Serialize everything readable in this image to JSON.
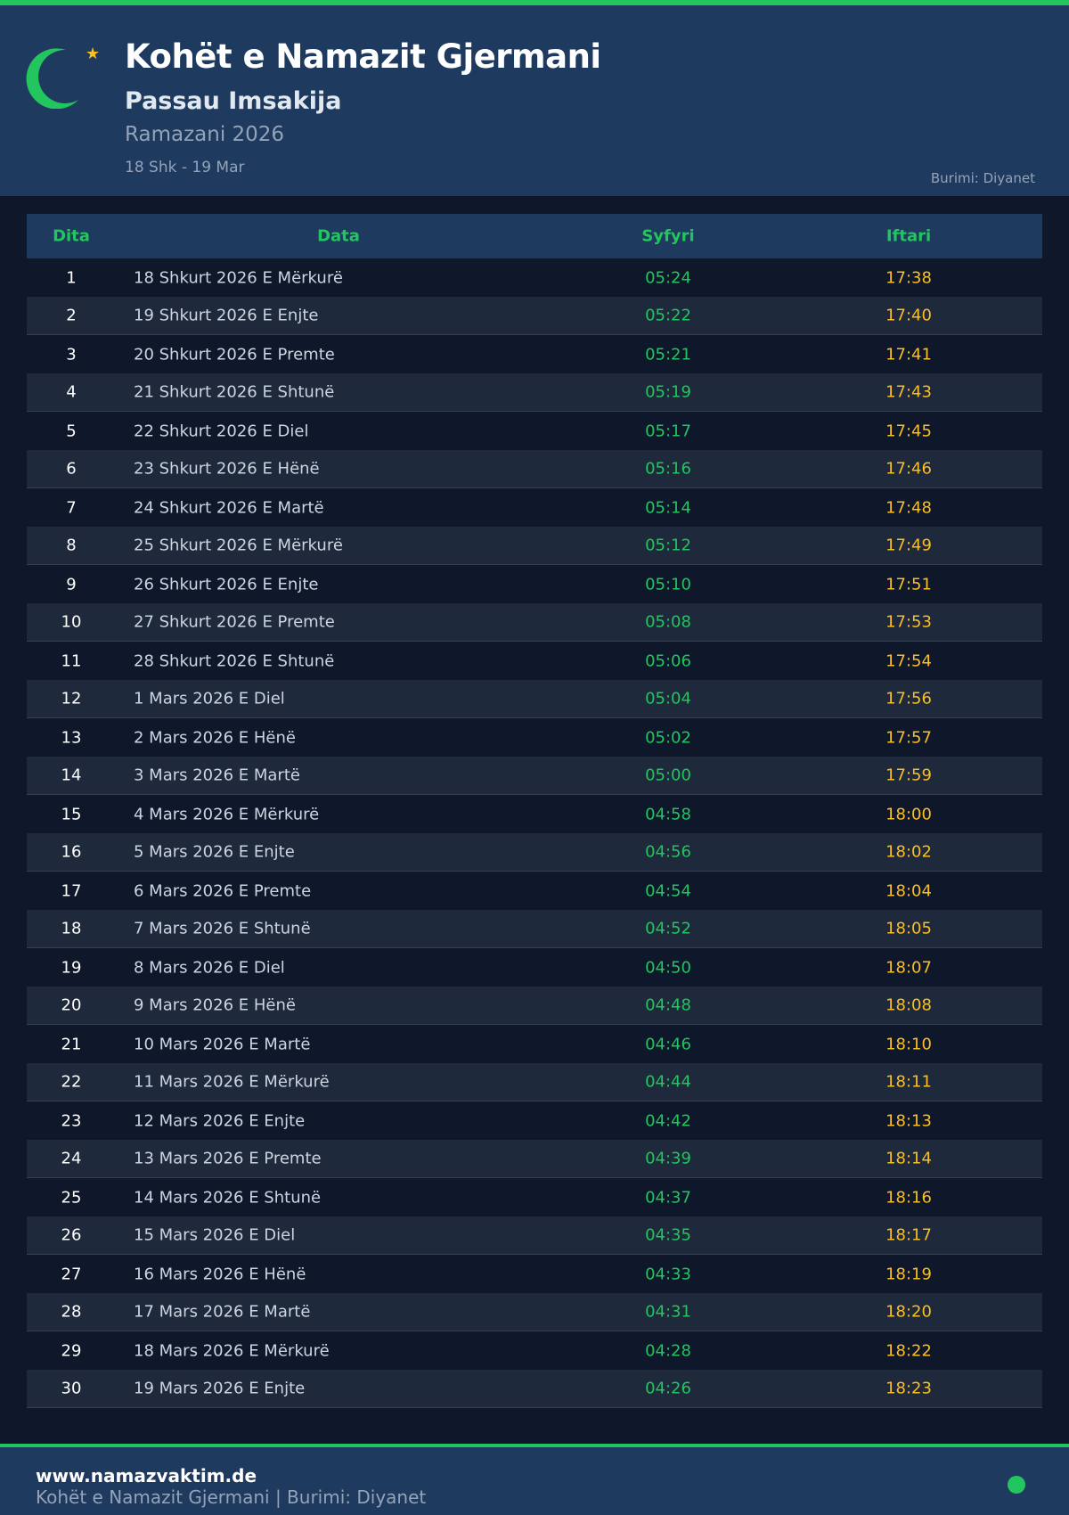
{
  "header": {
    "title": "Kohët e Namazit Gjermani",
    "subtitle": "Passau Imsakija",
    "season": "Ramazani 2026",
    "range": "18 Shk - 19 Mar",
    "source": "Burimi: Diyanet",
    "icon": "crescent-star",
    "accent": "#22c55e",
    "gold": "#fbbf24"
  },
  "table": {
    "headers": [
      "Dita",
      "Data",
      "Syfyri",
      "Iftari"
    ],
    "rows": [
      [
        "1",
        "18 Shkurt 2026 E Mërkurë",
        "05:24",
        "17:38"
      ],
      [
        "2",
        "19 Shkurt 2026 E Enjte",
        "05:22",
        "17:40"
      ],
      [
        "3",
        "20 Shkurt 2026 E Premte",
        "05:21",
        "17:41"
      ],
      [
        "4",
        "21 Shkurt 2026 E Shtunë",
        "05:19",
        "17:43"
      ],
      [
        "5",
        "22 Shkurt 2026 E Diel",
        "05:17",
        "17:45"
      ],
      [
        "6",
        "23 Shkurt 2026 E Hënë",
        "05:16",
        "17:46"
      ],
      [
        "7",
        "24 Shkurt 2026 E Martë",
        "05:14",
        "17:48"
      ],
      [
        "8",
        "25 Shkurt 2026 E Mërkurë",
        "05:12",
        "17:49"
      ],
      [
        "9",
        "26 Shkurt 2026 E Enjte",
        "05:10",
        "17:51"
      ],
      [
        "10",
        "27 Shkurt 2026 E Premte",
        "05:08",
        "17:53"
      ],
      [
        "11",
        "28 Shkurt 2026 E Shtunë",
        "05:06",
        "17:54"
      ],
      [
        "12",
        "1 Mars 2026 E Diel",
        "05:04",
        "17:56"
      ],
      [
        "13",
        "2 Mars 2026 E Hënë",
        "05:02",
        "17:57"
      ],
      [
        "14",
        "3 Mars 2026 E Martë",
        "05:00",
        "17:59"
      ],
      [
        "15",
        "4 Mars 2026 E Mërkurë",
        "04:58",
        "18:00"
      ],
      [
        "16",
        "5 Mars 2026 E Enjte",
        "04:56",
        "18:02"
      ],
      [
        "17",
        "6 Mars 2026 E Premte",
        "04:54",
        "18:04"
      ],
      [
        "18",
        "7 Mars 2026 E Shtunë",
        "04:52",
        "18:05"
      ],
      [
        "19",
        "8 Mars 2026 E Diel",
        "04:50",
        "18:07"
      ],
      [
        "20",
        "9 Mars 2026 E Hënë",
        "04:48",
        "18:08"
      ],
      [
        "21",
        "10 Mars 2026 E Martë",
        "04:46",
        "18:10"
      ],
      [
        "22",
        "11 Mars 2026 E Mërkurë",
        "04:44",
        "18:11"
      ],
      [
        "23",
        "12 Mars 2026 E Enjte",
        "04:42",
        "18:13"
      ],
      [
        "24",
        "13 Mars 2026 E Premte",
        "04:39",
        "18:14"
      ],
      [
        "25",
        "14 Mars 2026 E Shtunë",
        "04:37",
        "18:16"
      ],
      [
        "26",
        "15 Mars 2026 E Diel",
        "04:35",
        "18:17"
      ],
      [
        "27",
        "16 Mars 2026 E Hënë",
        "04:33",
        "18:19"
      ],
      [
        "28",
        "17 Mars 2026 E Martë",
        "04:31",
        "18:20"
      ],
      [
        "29",
        "18 Mars 2026 E Mërkurë",
        "04:28",
        "18:22"
      ],
      [
        "30",
        "19 Mars 2026 E Enjte",
        "04:26",
        "18:23"
      ]
    ]
  },
  "footer": {
    "website": "www.namazvaktim.de",
    "tagline": "Kohët e Namazit Gjermani | Burimi: Diyanet"
  }
}
